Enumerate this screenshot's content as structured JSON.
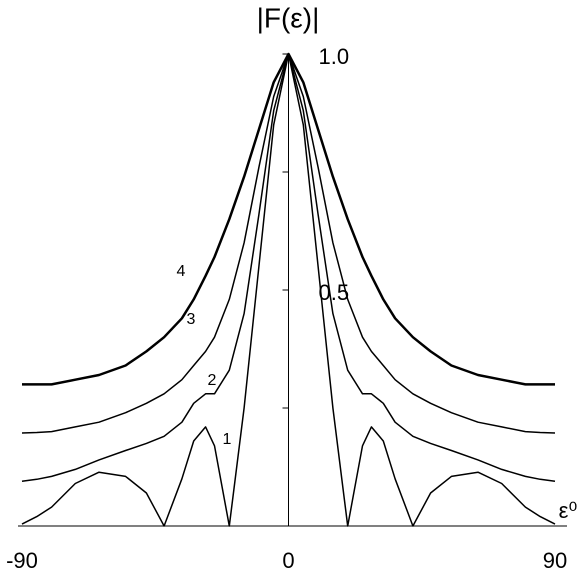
{
  "chart_data": {
    "type": "line",
    "y_label": "|F(ε)|",
    "x_label": "ε⁰",
    "x": [
      -90,
      -85,
      -80,
      -72,
      -64,
      -55,
      -48,
      -42,
      -36,
      -32,
      -28,
      -25,
      -20,
      -15,
      -10,
      -5,
      0,
      5,
      10,
      15,
      20,
      25,
      28,
      32,
      36,
      42,
      48,
      55,
      64,
      72,
      80,
      85,
      90
    ],
    "series": [
      {
        "name": "1",
        "color": "#000000",
        "values": [
          0.004,
          0.02,
          0.04,
          0.09,
          0.114,
          0.105,
          0.07,
          0.0,
          0.1,
          0.18,
          0.21,
          0.17,
          0.0,
          0.25,
          0.55,
          0.85,
          1.0,
          0.85,
          0.55,
          0.25,
          0.0,
          0.17,
          0.21,
          0.18,
          0.1,
          0.0,
          0.07,
          0.105,
          0.114,
          0.09,
          0.04,
          0.02,
          0.004
        ]
      },
      {
        "name": "2",
        "color": "#000000",
        "values": [
          0.095,
          0.099,
          0.105,
          0.12,
          0.14,
          0.16,
          0.175,
          0.19,
          0.22,
          0.26,
          0.28,
          0.28,
          0.33,
          0.45,
          0.66,
          0.88,
          1.0,
          0.88,
          0.66,
          0.45,
          0.33,
          0.28,
          0.28,
          0.26,
          0.22,
          0.19,
          0.175,
          0.16,
          0.14,
          0.12,
          0.105,
          0.099,
          0.095
        ]
      },
      {
        "name": "3",
        "color": "#000000",
        "values": [
          0.197,
          0.198,
          0.2,
          0.21,
          0.22,
          0.24,
          0.26,
          0.28,
          0.31,
          0.34,
          0.37,
          0.4,
          0.48,
          0.6,
          0.76,
          0.91,
          1.0,
          0.91,
          0.76,
          0.6,
          0.48,
          0.4,
          0.37,
          0.34,
          0.31,
          0.28,
          0.26,
          0.24,
          0.22,
          0.21,
          0.2,
          0.198,
          0.197
        ]
      },
      {
        "name": "4",
        "color": "#000000",
        "values": [
          0.3,
          0.3,
          0.3,
          0.31,
          0.32,
          0.34,
          0.37,
          0.4,
          0.44,
          0.48,
          0.53,
          0.57,
          0.65,
          0.74,
          0.84,
          0.94,
          1.0,
          0.94,
          0.84,
          0.74,
          0.65,
          0.57,
          0.53,
          0.48,
          0.44,
          0.4,
          0.37,
          0.34,
          0.32,
          0.31,
          0.3,
          0.3,
          0.3
        ]
      }
    ],
    "xlim": [
      -90,
      90
    ],
    "ylim": [
      0,
      1
    ],
    "xticks": [
      -90,
      0,
      90
    ],
    "yticks": [
      0.5,
      {
        "value": 1,
        "label": "1.0"
      }
    ],
    "yticks_minor": [
      0.25,
      0.75
    ]
  }
}
